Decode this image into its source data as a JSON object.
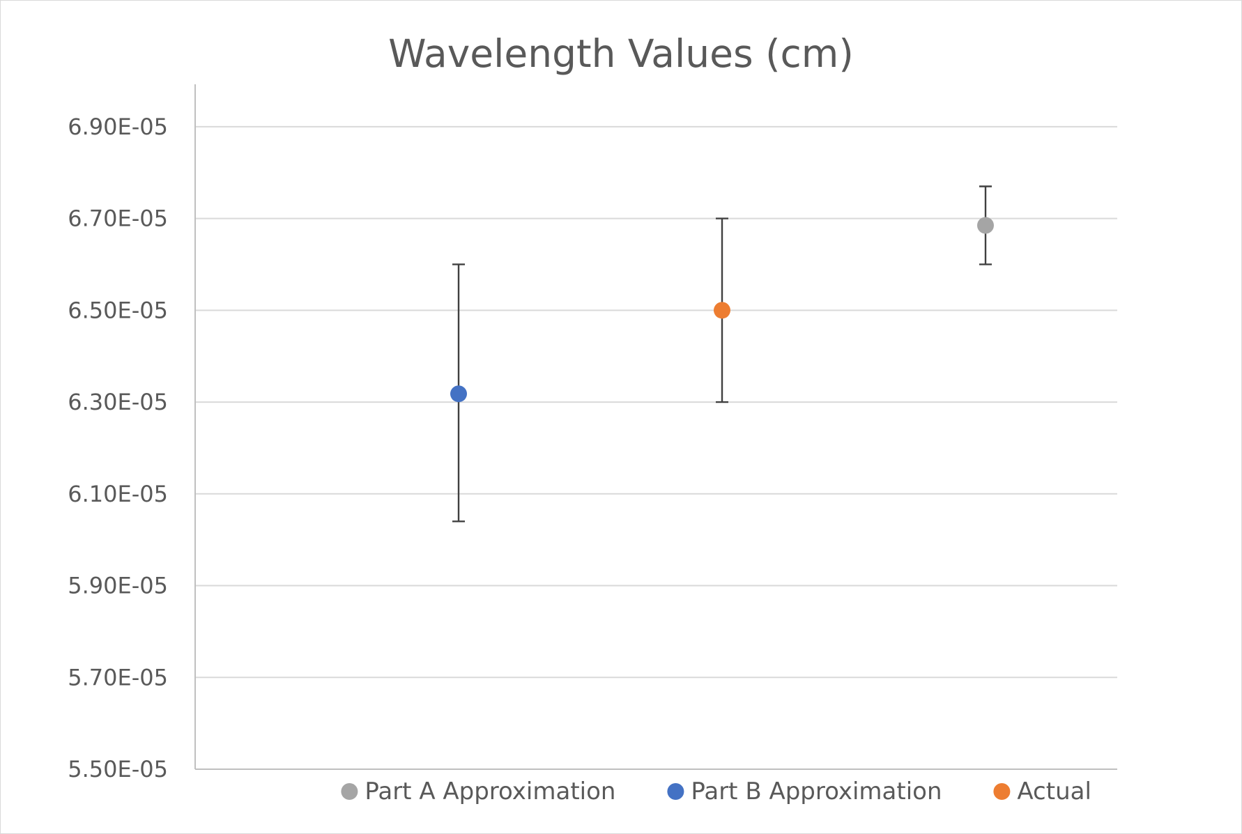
{
  "chart_data": {
    "type": "scatter",
    "title": "Wavelength Values (cm)",
    "xlabel": "",
    "ylabel": "",
    "ylim": [
      5.5e-05,
      7e-05
    ],
    "ytick_values": [
      5.5e-05,
      5.7e-05,
      5.9e-05,
      6.1e-05,
      6.3e-05,
      6.5e-05,
      6.7e-05,
      6.9e-05
    ],
    "ytick_labels": [
      "5.50E-05",
      "5.70E-05",
      "5.90E-05",
      "6.10E-05",
      "6.30E-05",
      "6.50E-05",
      "6.70E-05",
      "6.90E-05"
    ],
    "xlim": [
      0,
      3.5
    ],
    "grid": true,
    "legend_position": "bottom",
    "series": [
      {
        "name": "Part A Approximation",
        "color": "#a5a5a5",
        "x": [
          3
        ],
        "y": [
          6.685e-05
        ],
        "error": [
          {
            "lower": 6.6e-05,
            "upper": 6.77e-05
          }
        ]
      },
      {
        "name": "Part B Approximation",
        "color": "#4472c4",
        "x": [
          1
        ],
        "y": [
          6.318e-05
        ],
        "error": [
          {
            "lower": 6.04e-05,
            "upper": 6.6e-05
          }
        ]
      },
      {
        "name": "Actual",
        "color": "#ed7d31",
        "x": [
          2
        ],
        "y": [
          6.5e-05
        ],
        "error": [
          {
            "lower": 6.3e-05,
            "upper": 6.7e-05
          }
        ]
      }
    ]
  }
}
